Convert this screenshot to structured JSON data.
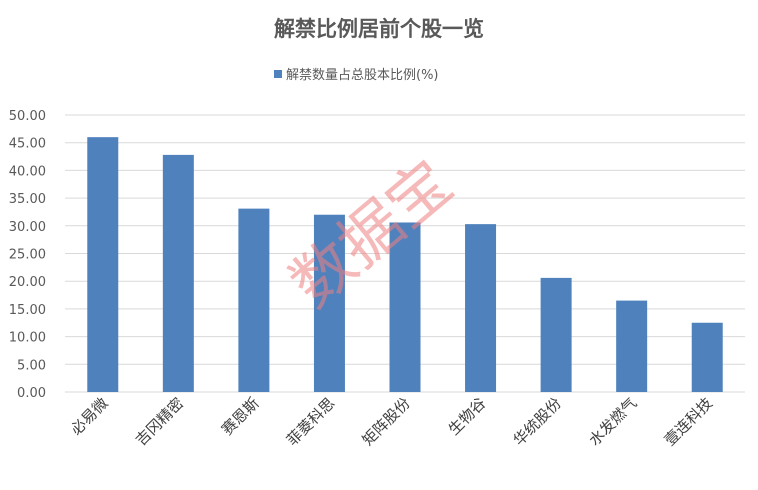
{
  "chart_data": {
    "type": "bar",
    "title": "解禁比例居前个股一览",
    "legend": {
      "position": "top",
      "entries": [
        "解禁数量占总股本比例(%)"
      ]
    },
    "categories": [
      "必易微",
      "吉冈精密",
      "赛恩斯",
      "菲菱科思",
      "矩阵股份",
      "生物谷",
      "华统股份",
      "水发燃气",
      "壹连科技"
    ],
    "series": [
      {
        "name": "解禁数量占总股本比例(%)",
        "values": [
          46.0,
          42.8,
          33.1,
          32.0,
          30.6,
          30.3,
          20.6,
          16.5,
          12.5
        ],
        "color": "#4f81bd"
      }
    ],
    "ylim": [
      0,
      50
    ],
    "yticks": [
      "0.00",
      "5.00",
      "10.00",
      "15.00",
      "20.00",
      "25.00",
      "30.00",
      "35.00",
      "40.00",
      "45.00",
      "50.00"
    ],
    "grid": true,
    "xlabel": "",
    "ylabel": ""
  },
  "watermark": "数据宝"
}
